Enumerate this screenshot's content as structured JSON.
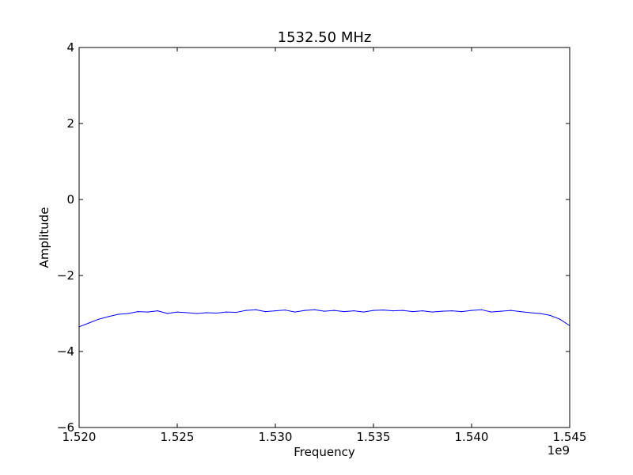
{
  "chart_data": {
    "type": "line",
    "title": "1532.50 MHz",
    "xlabel": "Frequency",
    "ylabel": "Amplitude",
    "x_offset_label": "1e9",
    "xlim": [
      1.52,
      1.545
    ],
    "ylim": [
      -6,
      4
    ],
    "xticks": [
      "1.520",
      "1.525",
      "1.530",
      "1.535",
      "1.540",
      "1.545"
    ],
    "yticks": [
      "−6",
      "−4",
      "−2",
      "0",
      "2",
      "4"
    ],
    "grid": false,
    "legend": "none",
    "series": [
      {
        "color": "#0000ff",
        "x": [
          1.52,
          1.5205,
          1.521,
          1.5215,
          1.522,
          1.5225,
          1.523,
          1.5235,
          1.524,
          1.5245,
          1.525,
          1.5255,
          1.526,
          1.5265,
          1.527,
          1.5275,
          1.528,
          1.5285,
          1.529,
          1.5295,
          1.53,
          1.5305,
          1.531,
          1.5315,
          1.532,
          1.5325,
          1.533,
          1.5335,
          1.534,
          1.5345,
          1.535,
          1.5355,
          1.536,
          1.5365,
          1.537,
          1.5375,
          1.538,
          1.5385,
          1.539,
          1.5395,
          1.54,
          1.5405,
          1.541,
          1.5415,
          1.542,
          1.5425,
          1.543,
          1.5435,
          1.544,
          1.5445,
          1.545
        ],
        "y": [
          -3.35,
          -3.25,
          -3.15,
          -3.08,
          -3.02,
          -3.0,
          -2.95,
          -2.96,
          -2.93,
          -3.0,
          -2.96,
          -2.98,
          -3.0,
          -2.98,
          -2.99,
          -2.96,
          -2.97,
          -2.92,
          -2.9,
          -2.95,
          -2.93,
          -2.91,
          -2.96,
          -2.92,
          -2.9,
          -2.94,
          -2.92,
          -2.95,
          -2.93,
          -2.96,
          -2.92,
          -2.91,
          -2.93,
          -2.92,
          -2.95,
          -2.93,
          -2.96,
          -2.94,
          -2.93,
          -2.95,
          -2.92,
          -2.9,
          -2.96,
          -2.94,
          -2.92,
          -2.95,
          -2.98,
          -3.0,
          -3.05,
          -3.15,
          -3.32
        ]
      }
    ]
  }
}
